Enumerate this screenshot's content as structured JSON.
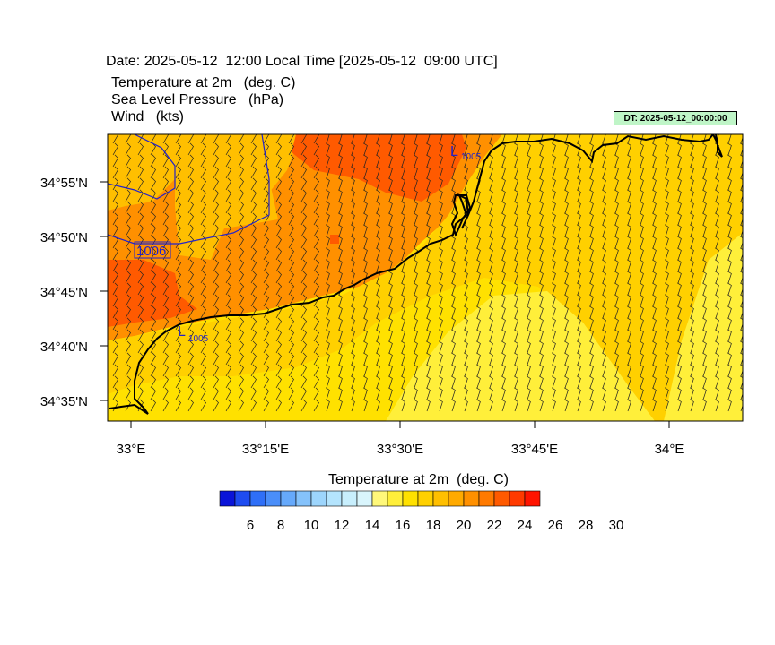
{
  "header": {
    "date_line": "Date: 2025-05-12  12:00 Local Time [2025-05-12  09:00 UTC]",
    "field1": "Temperature at 2m   (deg. C)",
    "field2": "Sea Level Pressure   (hPa)",
    "field3": "Wind   (kts)",
    "dt_badge": "DT: 2025-05-12_00:00:00"
  },
  "map": {
    "lat_labels": [
      "34°55'N",
      "34°50'N",
      "34°45'N",
      "34°40'N",
      "34°35'N"
    ],
    "lon_labels": [
      "33°E",
      "33°15'E",
      "33°30'E",
      "33°45'E",
      "34°E"
    ],
    "isobar_labels": [
      "1005",
      "1006",
      "1005"
    ],
    "low_marker": "L",
    "isobar_color": "#2222cc"
  },
  "colorbar": {
    "title": "Temperature at 2m  (deg. C)",
    "tick_labels": [
      "6",
      "8",
      "10",
      "12",
      "14",
      "16",
      "18",
      "20",
      "22",
      "24",
      "26",
      "28",
      "30"
    ],
    "colors": [
      "#0a14d8",
      "#1e4cf0",
      "#2f6ff7",
      "#4a8ef9",
      "#66a9fb",
      "#85c2fb",
      "#9dd5fc",
      "#b4e4fd",
      "#c8effd",
      "#d9f5fc",
      "#fff87a",
      "#ffef3a",
      "#ffe100",
      "#ffd000",
      "#ffbf00",
      "#ffaa00",
      "#ff9000",
      "#ff7a00",
      "#ff5a00",
      "#ff3a00",
      "#ff1400"
    ]
  }
}
